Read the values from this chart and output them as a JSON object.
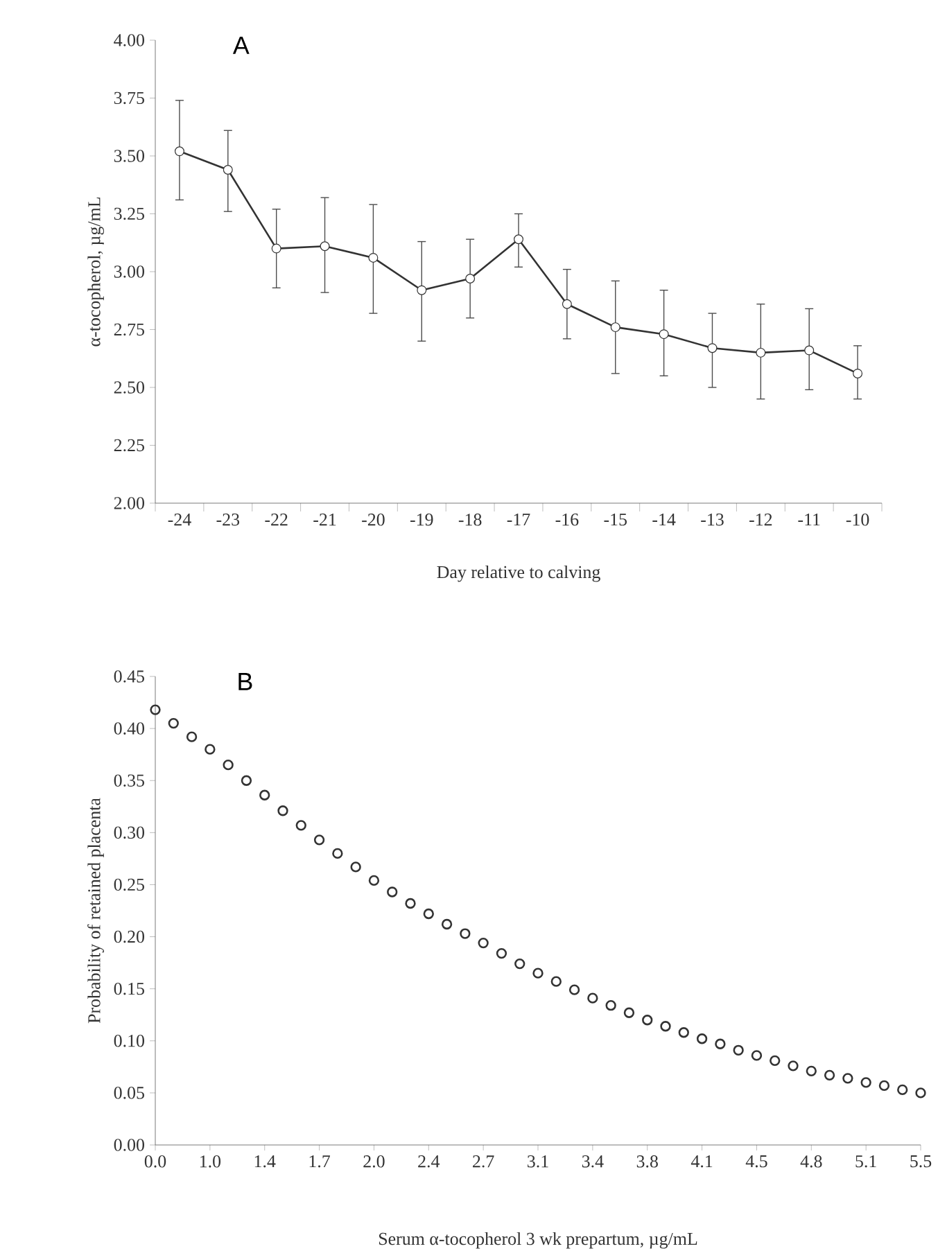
{
  "chart_data": [
    {
      "type": "line",
      "title": "A",
      "xlabel": "Day relative to calving",
      "ylabel": "α-tocopherol, µg/mL",
      "categories": [
        "-24",
        "-23",
        "-22",
        "-21",
        "-20",
        "-19",
        "-18",
        "-17",
        "-16",
        "-15",
        "-14",
        "-13",
        "-12",
        "-11",
        "-10"
      ],
      "series": [
        {
          "color": "#333333",
          "values": [
            3.52,
            3.44,
            3.1,
            3.11,
            3.06,
            2.92,
            2.97,
            3.14,
            2.86,
            2.76,
            2.73,
            2.67,
            2.65,
            2.66,
            2.56
          ],
          "errors": [
            [
              3.31,
              3.74
            ],
            [
              3.26,
              3.61
            ],
            [
              2.93,
              3.27
            ],
            [
              2.91,
              3.32
            ],
            [
              2.82,
              3.29
            ],
            [
              2.7,
              3.13
            ],
            [
              2.8,
              3.14
            ],
            [
              3.02,
              3.25
            ],
            [
              2.71,
              3.01
            ],
            [
              2.56,
              2.96
            ],
            [
              2.55,
              2.92
            ],
            [
              2.5,
              2.82
            ],
            [
              2.45,
              2.86
            ],
            [
              2.49,
              2.84
            ],
            [
              2.45,
              2.68
            ]
          ]
        }
      ],
      "ylim": [
        2.0,
        4.0
      ],
      "yticks": [
        {
          "value": 2.0,
          "label": "2.00"
        },
        {
          "value": 2.25,
          "label": "2.25"
        },
        {
          "value": 2.5,
          "label": "2.50"
        },
        {
          "value": 2.75,
          "label": "2.75"
        },
        {
          "value": 3.0,
          "label": "3.00"
        },
        {
          "value": 3.25,
          "label": "3.25"
        },
        {
          "value": 3.5,
          "label": "3.50"
        },
        {
          "value": 3.75,
          "label": "3.75"
        },
        {
          "value": 4.0,
          "label": "4.00"
        }
      ],
      "marker": "circle",
      "line_style": "solid",
      "grid": false
    },
    {
      "type": "scatter",
      "title": "B",
      "xlabel": "Serum α-tocopherol 3 wk prepartum, µg/mL",
      "ylabel": "Probability of retained placenta",
      "categories": [
        "0.0",
        null,
        null,
        "1.0",
        null,
        null,
        "1.4",
        null,
        null,
        "1.7",
        null,
        null,
        "2.0",
        null,
        null,
        "2.4",
        null,
        null,
        "2.7",
        null,
        null,
        "3.1",
        null,
        null,
        "3.4",
        null,
        null,
        "3.8",
        null,
        null,
        "4.1",
        null,
        null,
        "4.5",
        null,
        null,
        "4.8",
        null,
        null,
        "5.1",
        null,
        null,
        "5.5"
      ],
      "series": [
        {
          "color": "#333333",
          "values": [
            0.418,
            0.405,
            0.392,
            0.38,
            0.365,
            0.35,
            0.336,
            0.321,
            0.307,
            0.293,
            0.28,
            0.267,
            0.254,
            0.243,
            0.232,
            0.222,
            0.212,
            0.203,
            0.194,
            0.184,
            0.174,
            0.165,
            0.157,
            0.149,
            0.141,
            0.134,
            0.127,
            0.12,
            0.114,
            0.108,
            0.102,
            0.097,
            0.091,
            0.086,
            0.081,
            0.076,
            0.071,
            0.067,
            0.064,
            0.06,
            0.057,
            0.053,
            0.05
          ]
        }
      ],
      "ylim": [
        0,
        0.45
      ],
      "yticks": [
        {
          "value": 0,
          "label": "0.00"
        },
        {
          "value": 0.05,
          "label": "0.05"
        },
        {
          "value": 0.1,
          "label": "0.10"
        },
        {
          "value": 0.15,
          "label": "0.15"
        },
        {
          "value": 0.2,
          "label": "0.20"
        },
        {
          "value": 0.25,
          "label": "0.25"
        },
        {
          "value": 0.3,
          "label": "0.30"
        },
        {
          "value": 0.35,
          "label": "0.35"
        },
        {
          "value": 0.4,
          "label": "0.40"
        },
        {
          "value": 0.45,
          "label": "0.45"
        }
      ],
      "marker": "circle",
      "grid": false
    }
  ]
}
